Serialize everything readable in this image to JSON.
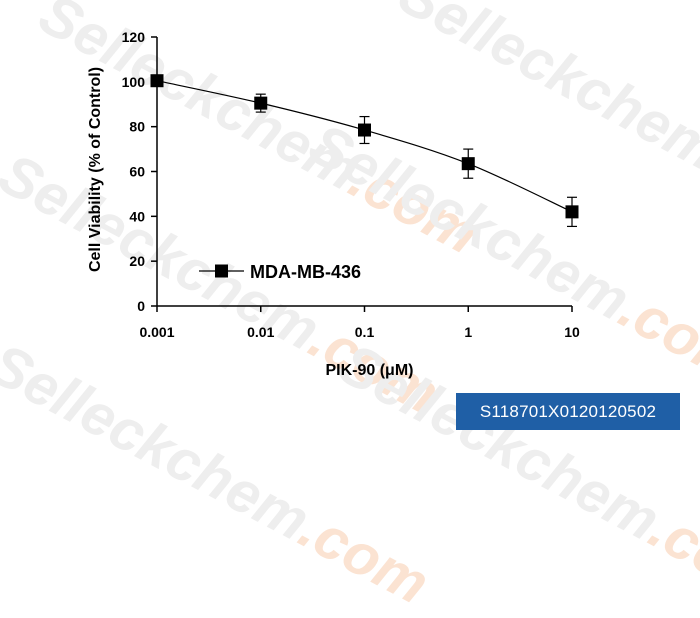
{
  "watermark": {
    "brand": "Selleckchem",
    "suffix": ".com"
  },
  "catalog_code": "S118701X0120120502",
  "colors": {
    "series": "#000000",
    "badge": "#1f5fa6",
    "watermark": "#eeeeee"
  },
  "chart_data": {
    "type": "line",
    "x_scale": "log",
    "x": [
      0.001,
      0.01,
      0.1,
      1,
      10
    ],
    "x_tick_labels": [
      "0.001",
      "0.01",
      "0.1",
      "1",
      "10"
    ],
    "y_ticks": [
      0,
      20,
      40,
      60,
      80,
      100,
      120
    ],
    "xlabel": "PIK-90 (μM)",
    "ylabel": "Cell Viability (% of Control)",
    "ylim": [
      0,
      120
    ],
    "grid": false,
    "legend_position": "lower-left",
    "series": [
      {
        "name": "MDA-MB-436",
        "marker": "square",
        "values": [
          100.5,
          90.5,
          78.5,
          63.5,
          42.0
        ],
        "error": [
          2.0,
          4.0,
          6.0,
          6.5,
          6.5
        ]
      }
    ]
  }
}
